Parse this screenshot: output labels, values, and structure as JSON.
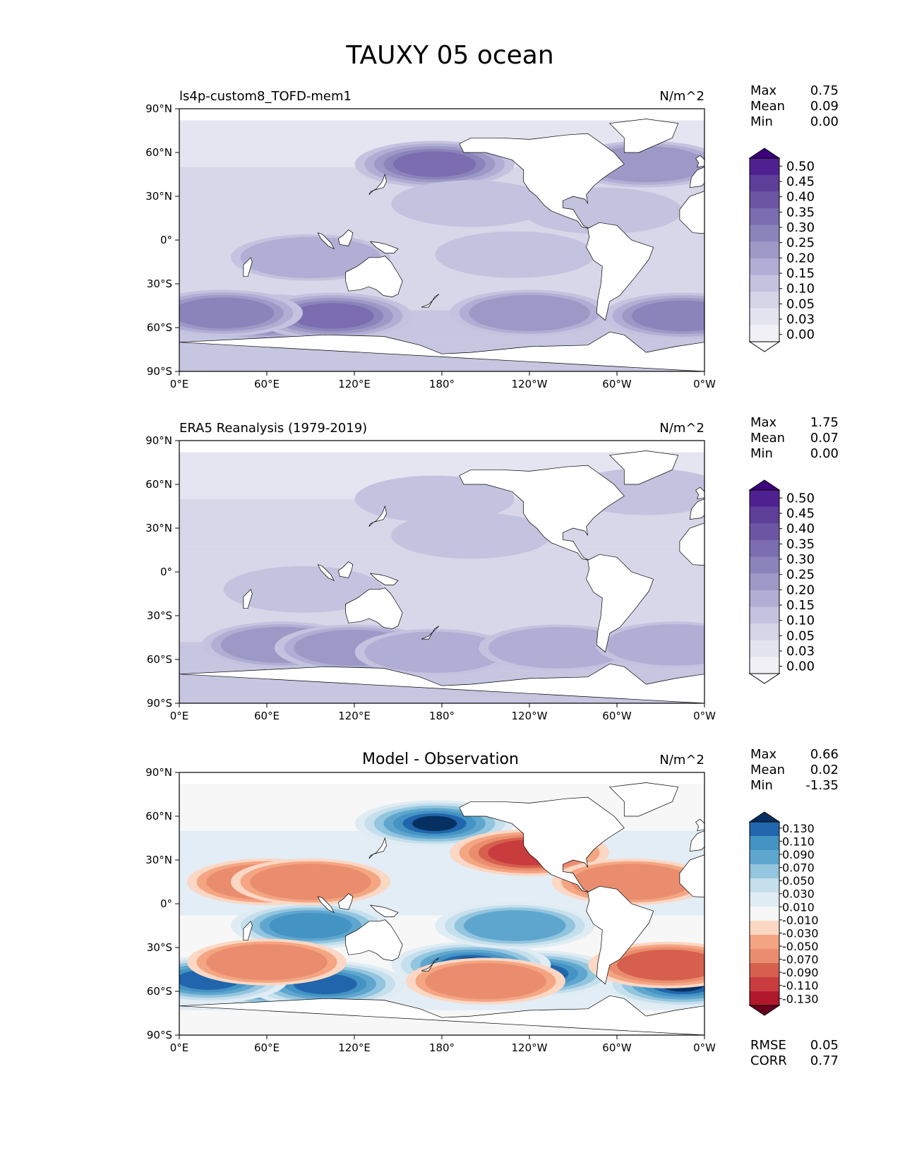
{
  "title": "TAUXY 05 ocean",
  "x_ticks": [
    "0°E",
    "60°E",
    "120°E",
    "180°",
    "120°W",
    "60°W",
    "0°W"
  ],
  "y_ticks": [
    "90°N",
    "60°N",
    "30°N",
    "0°",
    "30°S",
    "60°S",
    "90°S"
  ],
  "colors": {
    "purples": [
      "#fcfbfd",
      "#f2f0f7",
      "#e4e3f0",
      "#d5d5e8",
      "#c3c3df",
      "#b0aed4",
      "#9d99c7",
      "#8a84bb",
      "#7b6db0",
      "#6c56a4",
      "#5d3e98",
      "#4f2190",
      "#3f007d"
    ],
    "rdbu": [
      "#67001f",
      "#b2182b",
      "#c83c3e",
      "#d6604d",
      "#ea8d6e",
      "#f4a582",
      "#fbd7c4",
      "#f7f7f7",
      "#e0ecf4",
      "#c5dfed",
      "#92c5de",
      "#5fa6cf",
      "#4393c3",
      "#2166ac",
      "#053061"
    ]
  },
  "panels": [
    {
      "title": "ls4p-custom8_TOFD-mem1",
      "units": "N/m^2",
      "stats": [
        {
          "label": "Max",
          "value": "0.75"
        },
        {
          "label": "Mean",
          "value": "0.09"
        },
        {
          "label": "Min",
          "value": "0.00"
        }
      ],
      "colorbar_labels": [
        "0.50",
        "0.45",
        "0.40",
        "0.35",
        "0.30",
        "0.25",
        "0.20",
        "0.15",
        "0.10",
        "0.05",
        "0.03",
        "0.00"
      ]
    },
    {
      "title": "ERA5 Reanalysis (1979-2019)",
      "units": "N/m^2",
      "stats": [
        {
          "label": "Max",
          "value": "1.75"
        },
        {
          "label": "Mean",
          "value": "0.07"
        },
        {
          "label": "Min",
          "value": "0.00"
        }
      ],
      "colorbar_labels": [
        "0.50",
        "0.45",
        "0.40",
        "0.35",
        "0.30",
        "0.25",
        "0.20",
        "0.15",
        "0.10",
        "0.05",
        "0.03",
        "0.00"
      ]
    },
    {
      "title": "Model - Observation",
      "units": "N/m^2",
      "stats": [
        {
          "label": "Max",
          "value": "0.66"
        },
        {
          "label": "Mean",
          "value": "0.02"
        },
        {
          "label": "Min",
          "value": "-1.35"
        }
      ],
      "colorbar_labels": [
        "0.130",
        "0.110",
        "0.090",
        "0.070",
        "0.050",
        "0.030",
        "0.010",
        "-0.010",
        "-0.030",
        "-0.050",
        "-0.070",
        "-0.090",
        "-0.110",
        "-0.130"
      ],
      "metrics": [
        {
          "label": "RMSE",
          "value": "0.05"
        },
        {
          "label": "CORR",
          "value": "0.77"
        }
      ]
    }
  ],
  "chart_data": [
    {
      "type": "heatmap",
      "title": "ls4p-custom8_TOFD-mem1",
      "variable": "TAUXY 05 ocean",
      "units": "N/m^2",
      "x_ticks": [
        "0°E",
        "60°E",
        "120°E",
        "180°",
        "120°W",
        "60°W",
        "0°W"
      ],
      "y_ticks": [
        "90°N",
        "60°N",
        "30°N",
        "0°",
        "30°S",
        "60°S",
        "90°S"
      ],
      "xlim": [
        0,
        360
      ],
      "ylim": [
        -90,
        90
      ],
      "levels": [
        0.0,
        0.03,
        0.05,
        0.1,
        0.15,
        0.2,
        0.25,
        0.3,
        0.35,
        0.4,
        0.45,
        0.5
      ],
      "stats": {
        "max": 0.75,
        "mean": 0.09,
        "min": 0.0
      },
      "features": [
        {
          "lon": 60,
          "lat": -53,
          "value": 0.4
        },
        {
          "lon": 105,
          "lat": -52,
          "value": 0.3
        },
        {
          "lon": 30,
          "lat": -50,
          "value": 0.28
        },
        {
          "lon": 240,
          "lat": -50,
          "value": 0.24
        },
        {
          "lon": 345,
          "lat": -52,
          "value": 0.26
        },
        {
          "lon": 175,
          "lat": 52,
          "value": 0.3
        },
        {
          "lon": 320,
          "lat": 52,
          "value": 0.2
        },
        {
          "lon": 90,
          "lat": -12,
          "value": 0.17
        },
        {
          "lon": 200,
          "lat": 25,
          "value": 0.14
        },
        {
          "lon": 230,
          "lat": -10,
          "value": 0.12
        },
        {
          "lon": 290,
          "lat": 20,
          "value": 0.12
        }
      ]
    },
    {
      "type": "heatmap",
      "title": "ERA5 Reanalysis (1979-2019)",
      "variable": "TAUXY 05 ocean",
      "units": "N/m^2",
      "x_ticks": [
        "0°E",
        "60°E",
        "120°E",
        "180°",
        "120°W",
        "60°W",
        "0°W"
      ],
      "y_ticks": [
        "90°N",
        "60°N",
        "30°N",
        "0°",
        "30°S",
        "60°S",
        "90°S"
      ],
      "xlim": [
        0,
        360
      ],
      "ylim": [
        -90,
        90
      ],
      "levels": [
        0.0,
        0.03,
        0.05,
        0.1,
        0.15,
        0.2,
        0.25,
        0.3,
        0.35,
        0.4,
        0.45,
        0.5
      ],
      "stats": {
        "max": 1.75,
        "mean": 0.07,
        "min": 0.0
      },
      "features": [
        {
          "lon": 70,
          "lat": -50,
          "value": 0.22
        },
        {
          "lon": 120,
          "lat": -52,
          "value": 0.2
        },
        {
          "lon": 175,
          "lat": -55,
          "value": 0.18
        },
        {
          "lon": 260,
          "lat": -52,
          "value": 0.15
        },
        {
          "lon": 340,
          "lat": -50,
          "value": 0.15
        },
        {
          "lon": 175,
          "lat": 50,
          "value": 0.14
        },
        {
          "lon": 320,
          "lat": 55,
          "value": 0.14
        },
        {
          "lon": 200,
          "lat": 25,
          "value": 0.12
        },
        {
          "lon": 85,
          "lat": -12,
          "value": 0.12
        }
      ]
    },
    {
      "type": "heatmap",
      "title": "Model - Observation",
      "variable": "TAUXY 05 ocean",
      "units": "N/m^2",
      "x_ticks": [
        "0°E",
        "60°E",
        "120°E",
        "180°",
        "120°W",
        "60°W",
        "0°W"
      ],
      "y_ticks": [
        "90°N",
        "60°N",
        "30°N",
        "0°",
        "30°S",
        "60°S",
        "90°S"
      ],
      "xlim": [
        0,
        360
      ],
      "ylim": [
        -90,
        90
      ],
      "levels": [
        -0.13,
        -0.11,
        -0.09,
        -0.07,
        -0.05,
        -0.03,
        -0.01,
        0.01,
        0.03,
        0.05,
        0.07,
        0.09,
        0.11,
        0.13
      ],
      "stats": {
        "max": 0.66,
        "mean": 0.02,
        "min": -1.35
      },
      "metrics": {
        "rmse": 0.05,
        "corr": 0.77
      },
      "features": [
        {
          "lon": 60,
          "lat": -55,
          "value": 0.14
        },
        {
          "lon": 100,
          "lat": -55,
          "value": 0.12
        },
        {
          "lon": 20,
          "lat": -52,
          "value": 0.11
        },
        {
          "lon": 175,
          "lat": 55,
          "value": 0.14
        },
        {
          "lon": 245,
          "lat": -48,
          "value": 0.14
        },
        {
          "lon": 200,
          "lat": -42,
          "value": 0.13
        },
        {
          "lon": 345,
          "lat": -55,
          "value": 0.13
        },
        {
          "lon": 90,
          "lat": -15,
          "value": 0.1
        },
        {
          "lon": 230,
          "lat": -15,
          "value": 0.07
        },
        {
          "lon": 240,
          "lat": 35,
          "value": -0.1
        },
        {
          "lon": 335,
          "lat": -42,
          "value": -0.08
        },
        {
          "lon": 60,
          "lat": 15,
          "value": -0.06
        },
        {
          "lon": 90,
          "lat": 15,
          "value": -0.05
        },
        {
          "lon": 310,
          "lat": 15,
          "value": -0.05
        },
        {
          "lon": 210,
          "lat": -53,
          "value": -0.06
        },
        {
          "lon": 60,
          "lat": -40,
          "value": -0.05
        }
      ]
    }
  ]
}
